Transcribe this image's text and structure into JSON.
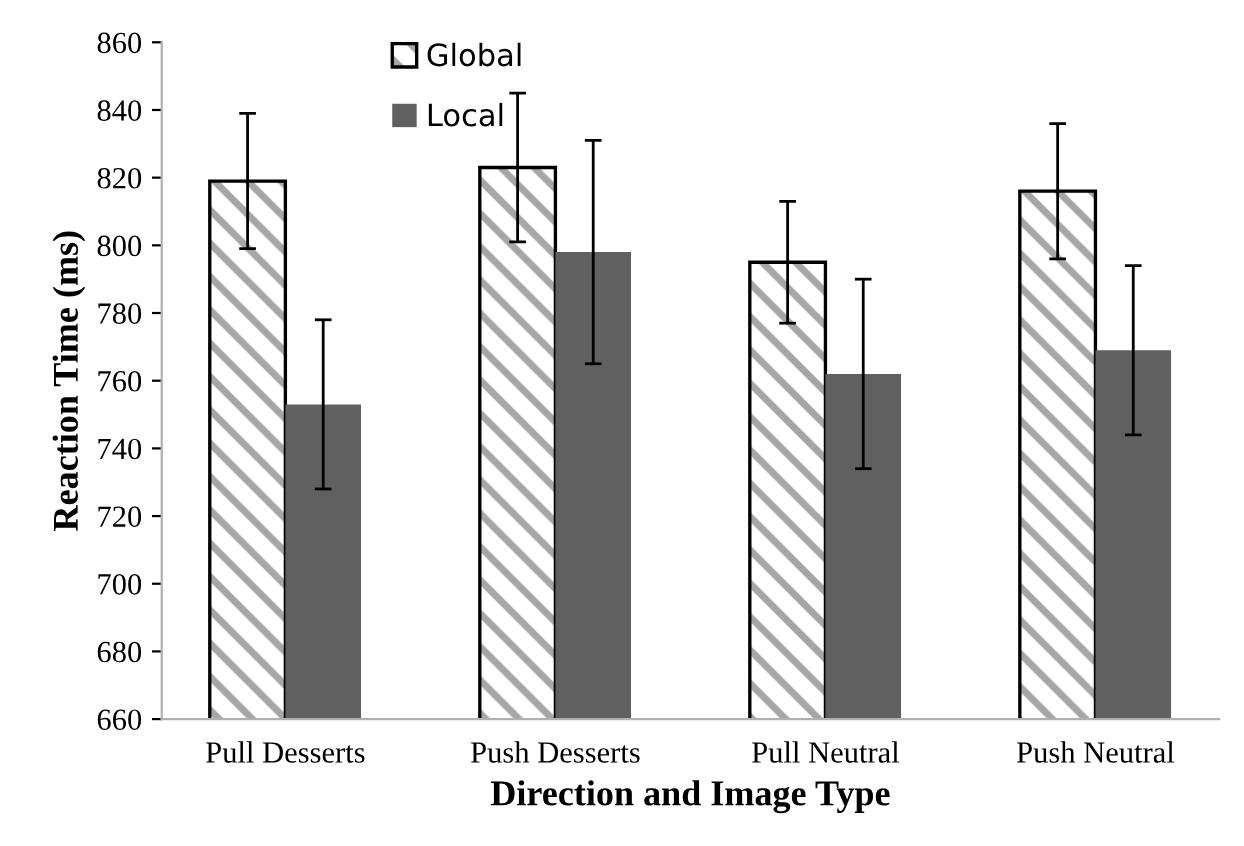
{
  "chart_data": {
    "type": "bar",
    "xlabel": "Direction and Image Type",
    "ylabel": "Reaction Time (ms)",
    "categories": [
      "Pull Desserts",
      "Push Desserts",
      "Pull Neutral",
      "Push Neutral"
    ],
    "series": [
      {
        "name": "Global",
        "color": "#000000",
        "values": [
          819,
          823,
          795,
          816
        ],
        "errors": [
          20,
          22,
          18,
          20
        ]
      },
      {
        "name": "Local",
        "color": "#606060",
        "values": [
          753,
          798,
          762,
          769
        ],
        "errors": [
          25,
          33,
          28,
          25
        ]
      }
    ],
    "ylim": [
      660,
      860
    ],
    "yticks": [
      660,
      680,
      700,
      720,
      740,
      760,
      780,
      800,
      820,
      840,
      860
    ],
    "grid": false,
    "legend": "top"
  }
}
